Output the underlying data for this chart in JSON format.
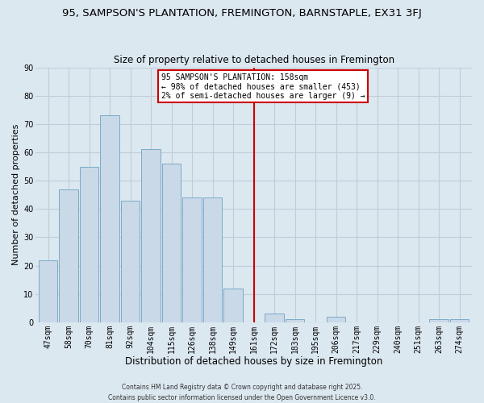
{
  "title1": "95, SAMPSON'S PLANTATION, FREMINGTON, BARNSTAPLE, EX31 3FJ",
  "title2": "Size of property relative to detached houses in Fremington",
  "xlabel": "Distribution of detached houses by size in Fremington",
  "ylabel": "Number of detached properties",
  "bar_labels": [
    "47sqm",
    "58sqm",
    "70sqm",
    "81sqm",
    "92sqm",
    "104sqm",
    "115sqm",
    "126sqm",
    "138sqm",
    "149sqm",
    "161sqm",
    "172sqm",
    "183sqm",
    "195sqm",
    "206sqm",
    "217sqm",
    "229sqm",
    "240sqm",
    "251sqm",
    "263sqm",
    "274sqm"
  ],
  "bar_values": [
    22,
    47,
    55,
    73,
    43,
    61,
    56,
    44,
    44,
    12,
    0,
    3,
    1,
    0,
    2,
    0,
    0,
    0,
    0,
    1,
    1
  ],
  "bar_color": "#c9d9e8",
  "bar_edge_color": "#7aaac8",
  "vline_x_idx": 10,
  "vline_color": "#cc0000",
  "annotation_title": "95 SAMPSON'S PLANTATION: 158sqm",
  "annotation_line1": "← 98% of detached houses are smaller (453)",
  "annotation_line2": "2% of semi-detached houses are larger (9) →",
  "annotation_box_facecolor": "white",
  "annotation_box_edgecolor": "#cc0000",
  "footer1": "Contains HM Land Registry data © Crown copyright and database right 2025.",
  "footer2": "Contains public sector information licensed under the Open Government Licence v3.0.",
  "ylim": [
    0,
    90
  ],
  "yticks": [
    0,
    10,
    20,
    30,
    40,
    50,
    60,
    70,
    80,
    90
  ],
  "background_color": "#dce8f0",
  "grid_color": "#c0ccd8",
  "title1_fontsize": 9.5,
  "title2_fontsize": 8.5,
  "xlabel_fontsize": 8.5,
  "ylabel_fontsize": 8,
  "tick_fontsize": 7,
  "footer_fontsize": 5.5
}
